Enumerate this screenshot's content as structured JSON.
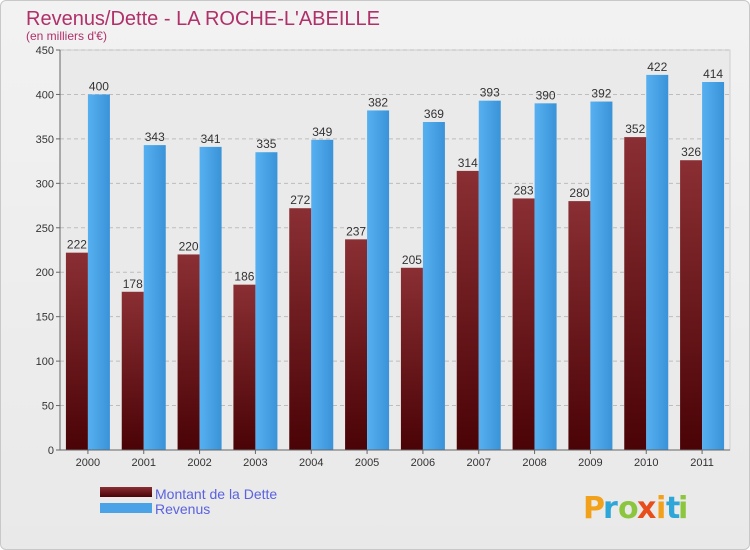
{
  "chart_data": {
    "type": "bar",
    "title": "Revenus/Dette - LA ROCHE-L'ABEILLE",
    "subtitle": "(en milliers d'€)",
    "categories": [
      "2000",
      "2001",
      "2002",
      "2003",
      "2004",
      "2005",
      "2006",
      "2007",
      "2008",
      "2009",
      "2010",
      "2011"
    ],
    "series": [
      {
        "name": "Montant de la Dette",
        "color": "#6e1a1e",
        "values": [
          222,
          178,
          220,
          186,
          272,
          237,
          205,
          314,
          283,
          280,
          352,
          326
        ]
      },
      {
        "name": "Revenus",
        "color": "#4aa3e6",
        "values": [
          400,
          343,
          341,
          335,
          349,
          382,
          369,
          393,
          390,
          392,
          422,
          414
        ]
      }
    ],
    "ylim": [
      0,
      450
    ],
    "yticks": [
      0,
      50,
      100,
      150,
      200,
      250,
      300,
      350,
      400,
      450
    ],
    "grid": true,
    "legend_position": "bottom-left"
  },
  "branding": {
    "logo_letters": [
      "P",
      "r",
      "o",
      "x",
      "i",
      "t",
      "i"
    ],
    "logo_colors": [
      "#f2a21a",
      "#2ea7d8",
      "#8cc63f",
      "#e84e1b",
      "#f2a21a",
      "#2ea7d8",
      "#8cc63f"
    ]
  }
}
